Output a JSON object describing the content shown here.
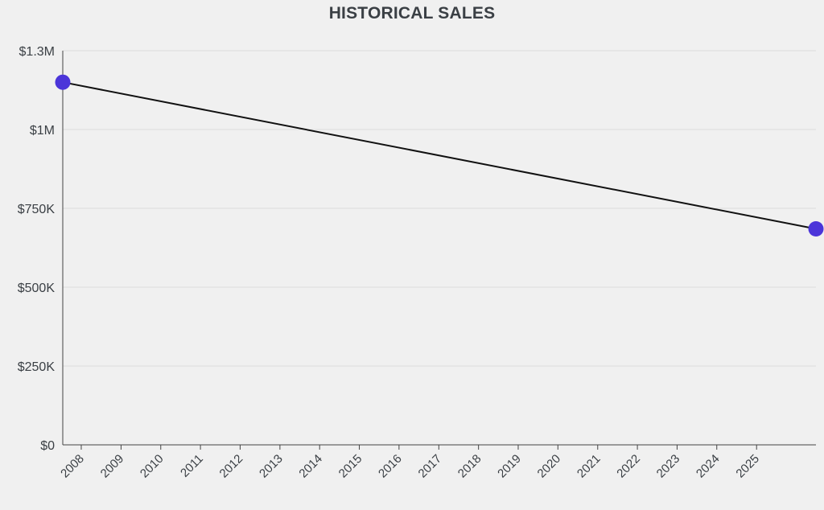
{
  "chart_data": {
    "type": "line",
    "title": "HISTORICAL SALES",
    "xlabel": "",
    "ylabel": "",
    "x_ticks": [
      "2008",
      "2009",
      "2010",
      "2011",
      "2012",
      "2013",
      "2014",
      "2015",
      "2016",
      "2017",
      "2018",
      "2019",
      "2020",
      "2021",
      "2022",
      "2023",
      "2024",
      "2025"
    ],
    "y_ticks": [
      {
        "value": 0,
        "label": "$0"
      },
      {
        "value": 250000,
        "label": "$250K"
      },
      {
        "value": 500000,
        "label": "$500K"
      },
      {
        "value": 750000,
        "label": "$750K"
      },
      {
        "value": 1000000,
        "label": "$1M"
      },
      {
        "value": 1250000,
        "label": "$1.3M"
      }
    ],
    "xlim": [
      "2007-07-15",
      "2026-07-01"
    ],
    "ylim": [
      0,
      1250000
    ],
    "grid": true,
    "legend": "none",
    "series": [
      {
        "color": "#4b35d9",
        "line_color": "#111111",
        "points": [
          {
            "x": "2007-07-15",
            "y": 1150000
          },
          {
            "x": "2026-07-01",
            "y": 685000
          }
        ]
      }
    ]
  }
}
